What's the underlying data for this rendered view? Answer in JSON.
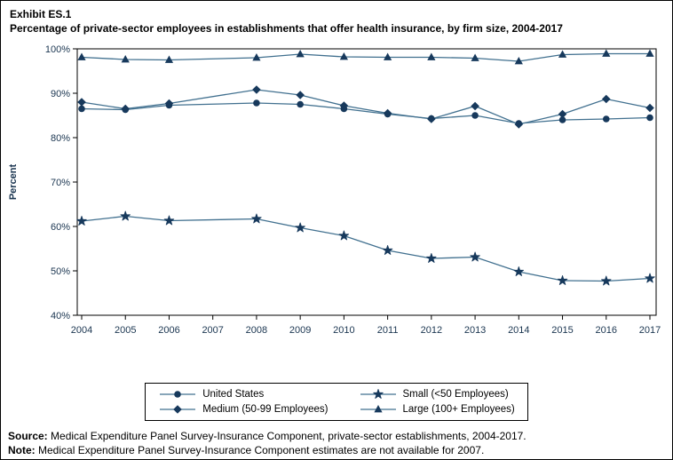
{
  "title": {
    "exhibit": "Exhibit ES.1",
    "heading": "Percentage of private-sector employees in establishments that offer health insurance, by firm size, 2004-2017"
  },
  "chart_data": {
    "type": "line",
    "x": [
      2004,
      2005,
      2006,
      2007,
      2008,
      2009,
      2010,
      2011,
      2012,
      2013,
      2014,
      2015,
      2016,
      2017
    ],
    "ylabel": "Percent",
    "ylim": [
      40,
      100
    ],
    "yticks": [
      40,
      50,
      60,
      70,
      80,
      90,
      100
    ],
    "ytick_suffix": "%",
    "grid": false,
    "legend_position": "bottom",
    "series": [
      {
        "name": "United States",
        "marker": "circle",
        "values": [
          86.5,
          86.3,
          87.3,
          null,
          87.8,
          87.5,
          86.5,
          85.3,
          84.3,
          85.0,
          83.2,
          84.0,
          84.2,
          84.5
        ]
      },
      {
        "name": "Medium (50-99 Employees)",
        "marker": "diamond",
        "values": [
          88.0,
          86.5,
          87.7,
          null,
          90.8,
          89.6,
          87.2,
          85.5,
          84.2,
          87.1,
          83.0,
          85.3,
          88.7,
          86.7
        ]
      },
      {
        "name": "Small (<50 Employees)",
        "marker": "star",
        "values": [
          61.2,
          62.3,
          61.3,
          null,
          61.7,
          59.7,
          57.9,
          54.6,
          52.8,
          53.1,
          49.8,
          47.8,
          47.7,
          48.3
        ]
      },
      {
        "name": "Large (100+ Employees)",
        "marker": "triangle",
        "values": [
          98.1,
          97.6,
          97.5,
          null,
          98.0,
          98.8,
          98.2,
          98.1,
          98.1,
          97.9,
          97.2,
          98.7,
          98.9,
          98.9
        ]
      }
    ],
    "colors": {
      "line": "#41708f",
      "marker": "#17395c",
      "axis_text": "#1a3550",
      "axis_line": "#000000"
    }
  },
  "legend": {
    "entries": [
      {
        "name": "United States",
        "marker": "circle"
      },
      {
        "name": "Small (<50 Employees)",
        "marker": "star"
      },
      {
        "name": "Medium (50-99 Employees)",
        "marker": "diamond"
      },
      {
        "name": "Large (100+ Employees)",
        "marker": "triangle"
      }
    ]
  },
  "footer": {
    "source_label": "Source:",
    "source_text": " Medical Expenditure Panel Survey-Insurance Component, private-sector establishments, 2004-2017.",
    "note_label": "Note:",
    "note_text": " Medical Expenditure Panel Survey-Insurance Component estimates are not available for 2007."
  }
}
